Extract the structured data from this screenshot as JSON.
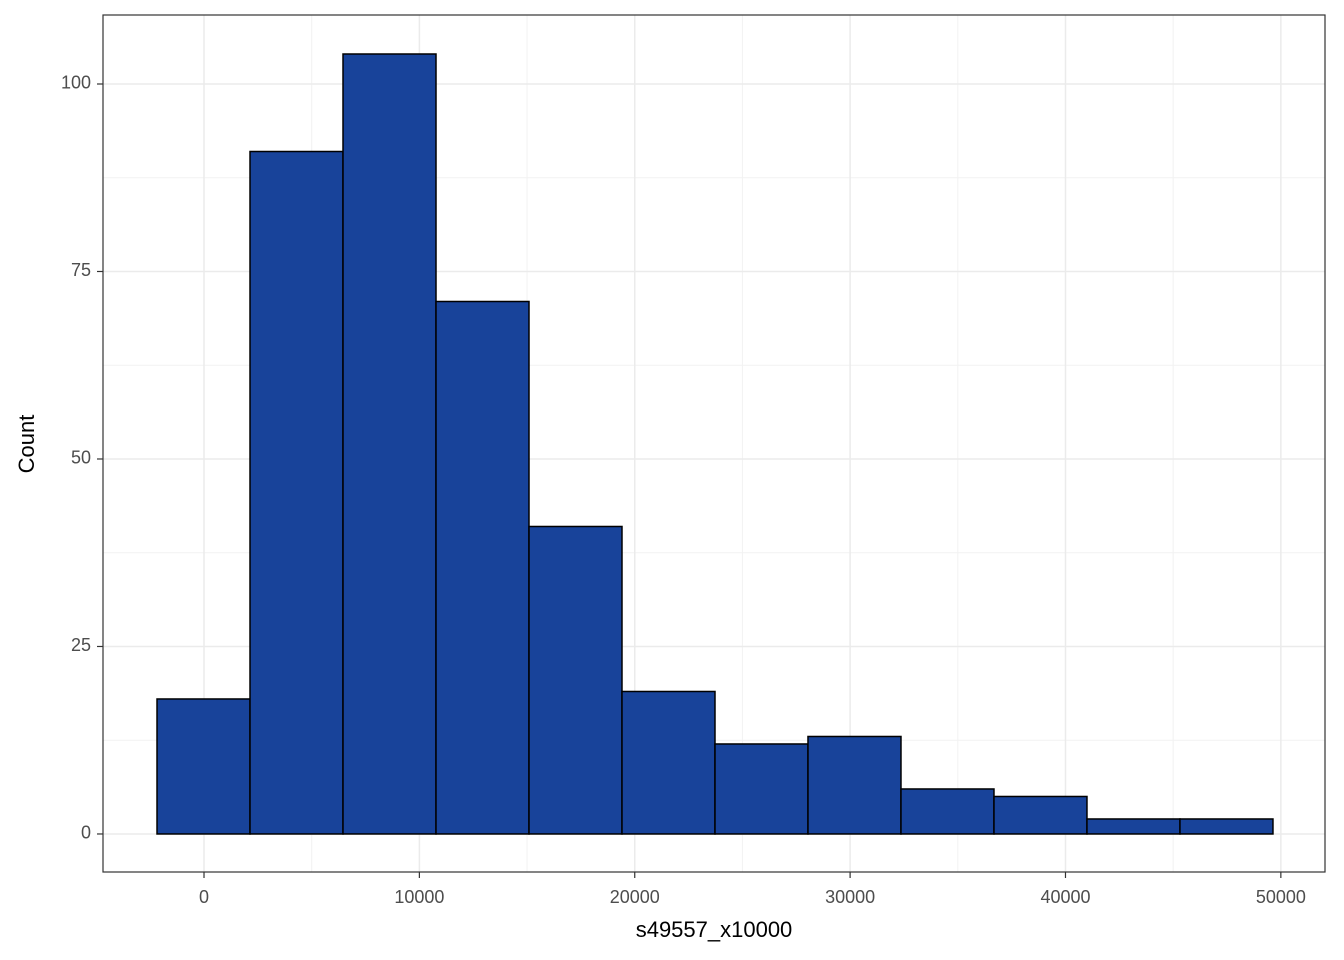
{
  "chart_data": {
    "type": "histogram",
    "x_label": "s49557_x10000",
    "y_label": "Count",
    "bins": [
      -2182,
      2136,
      6454,
      10772,
      15090,
      19408,
      23726,
      28044,
      32362,
      36680,
      40998,
      45316,
      49634
    ],
    "values": [
      18,
      91,
      104,
      71,
      41,
      19,
      12,
      13,
      6,
      5,
      2,
      2
    ],
    "color": "#18439a",
    "xlim": [
      -4690,
      52050
    ],
    "ylim": [
      -5.07,
      109.2
    ],
    "xticks": [
      0,
      10000,
      20000,
      30000,
      40000,
      50000
    ],
    "yticks": [
      0,
      25,
      50,
      75,
      100
    ],
    "grid": true
  }
}
